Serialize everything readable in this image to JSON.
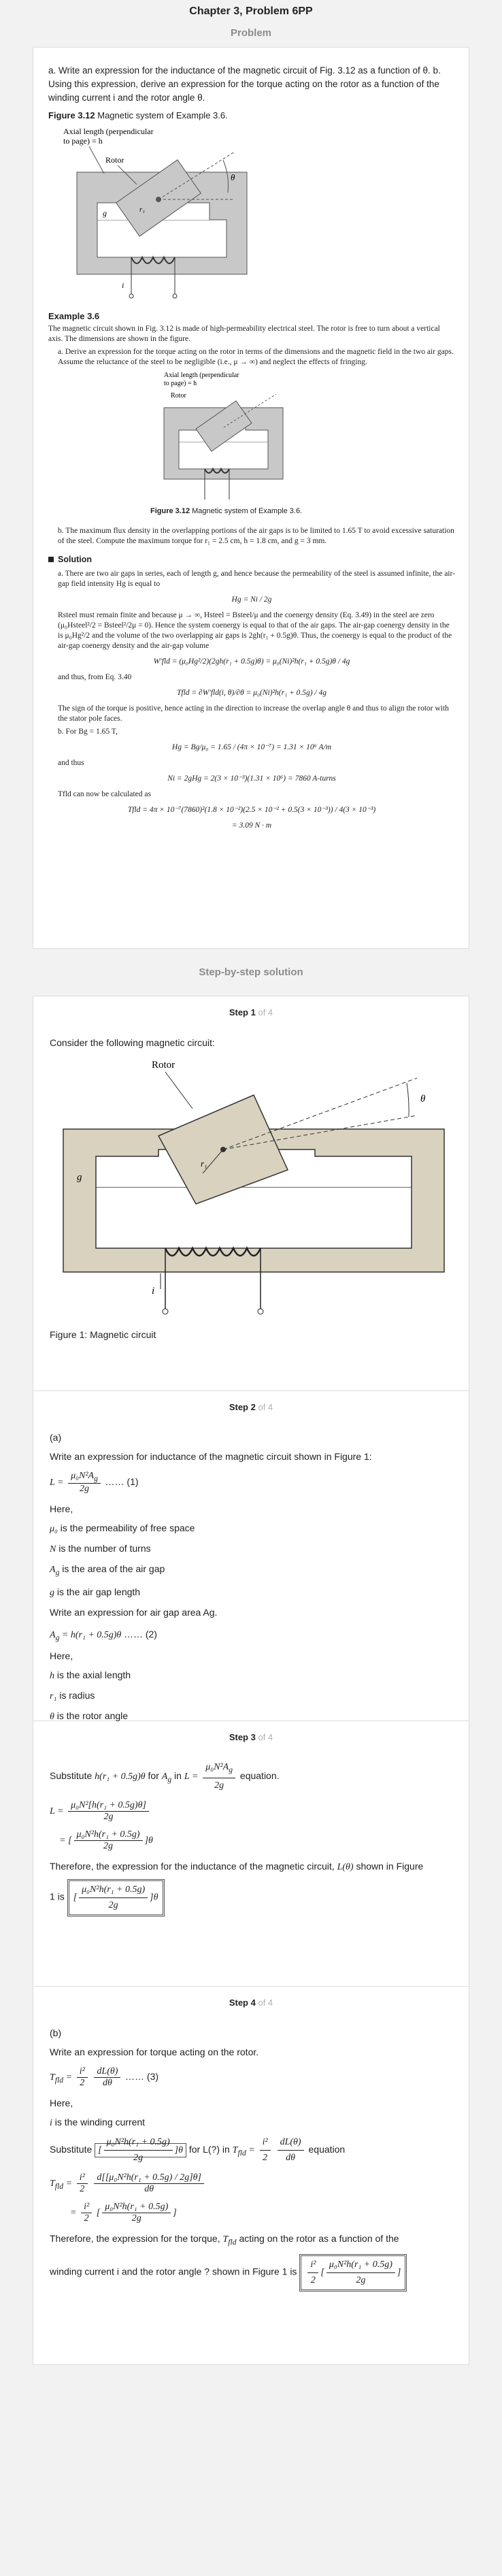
{
  "page_title": "Chapter 3, Problem 6PP",
  "problem_label": "Problem",
  "problem": {
    "text": "a. Write an expression for the inductance of the magnetic circuit of Fig. 3.12 as a function of θ. b. Using this expression, derive an expression for the torque acting on the rotor as a function of the winding current i and the rotor angle θ.",
    "figure_caption_bold": "Figure 3.12",
    "figure_caption": " Magnetic system of Example 3.6."
  },
  "figure_labels": {
    "axial": "Axial length (perpendicular",
    "axial2": "to page) = h",
    "rotor": "Rotor",
    "theta": "θ",
    "g": "g",
    "r1": "r₁",
    "i": "i"
  },
  "example": {
    "title": "Example 3.6",
    "intro": "The magnetic circuit shown in Fig. 3.12 is made of high-permeability electrical steel. The rotor is free to turn about a vertical axis. The dimensions are shown in the figure.",
    "part_a": "a.  Derive an expression for the torque acting on the rotor in terms of the dimensions and the magnetic field in the two air gaps. Assume the reluctance of the steel to be negligible (i.e., μ → ∞) and neglect the effects of fringing.",
    "fig_caption_bold": "Figure 3.12",
    "fig_caption": "  Magnetic system of Example 3.6.",
    "part_b": "b.  The maximum flux density in the overlapping portions of the air gaps is to be limited to 1.65 T to avoid excessive saturation of the steel. Compute the maximum torque for r₁ = 2.5 cm, h = 1.8 cm, and g = 3 mm.",
    "solution_label": "Solution",
    "sol_a1": "a.  There are two air gaps in series, each of length g, and hence because the permeability of the steel is assumed infinite, the air-gap field intensity Hg is equal to",
    "eq_hg": "Hg = Ni / 2g",
    "sol_a2": "Rsteel must remain finite and because μ → ∞, Hsteel = Bsteel/μ and the coenergy density (Eq. 3.49) in the steel are zero (μ₀Hsteel²/2 = Bsteel²/2μ = 0). Hence the system coenergy is equal to that of the air gaps. The air-gap coenergy density in the is μ₀Hg²/2 and the volume of the two overlapping air gaps is 2gh(r₁ + 0.5g)θ. Thus, the coenergy is equal to the product of the air-gap coenergy density and the air-gap volume",
    "eq_wfld": "W′fld = (μ₀Hg²/2)(2gh(r₁ + 0.5g)θ) = μ₀(Ni)²h(r₁ + 0.5g)θ / 4g",
    "sol_a3": "and thus, from Eq. 3.40",
    "eq_tfld": "Tfld = ∂W′fld(i, θ)/∂θ = μ₀(Ni)²h(r₁ + 0.5g) / 4g",
    "sol_a4": "The sign of the torque is positive, hence acting in the direction to increase the overlap angle θ and thus to align the rotor with the stator pole faces.",
    "sol_b1": "b.  For Bg = 1.65 T,",
    "eq_hg2": "Hg = Bg/μ₀ = 1.65 / (4π × 10⁻⁷) = 1.31 × 10⁶ A/m",
    "sol_b2": "and thus",
    "eq_ni": "Ni = 2gHg = 2(3 × 10⁻³)(1.31 × 10⁶) = 7860 A-turns",
    "sol_b3": "Tfld can now be calculated as",
    "eq_tfld2": "Tfld = 4π × 10⁻⁷(7860)²(1.8 × 10⁻²)(2.5 × 10⁻² + 0.5(3 × 10⁻³)) / 4(3 × 10⁻³)",
    "eq_result": "= 3.09 N · m"
  },
  "solution_label": "Step-by-step solution",
  "steps": {
    "s1": {
      "label": "Step 1",
      "of": "of 4",
      "intro": "Consider the following magnetic circuit:",
      "caption": "Figure 1: Magnetic circuit"
    },
    "s2": {
      "label": "Step 2",
      "of": "of 4",
      "part": "(a)",
      "intro": "Write an expression for inductance of the magnetic circuit shown in Figure 1:",
      "eq1_tag": "…… (1)",
      "here": "Here,",
      "d1": "is the permeability of free space",
      "d2": "is the number of turns",
      "d3": "is the area of the air gap",
      "d4": "is the air gap length",
      "intro2": "Write an expression for air gap area Ag.",
      "eq2_tag": "…… (2)",
      "here2": "Here,",
      "d5": "is the axial length",
      "d6": "is radius",
      "d7": "is the rotor angle"
    },
    "s3": {
      "label": "Step 3",
      "of": "of 4",
      "t1": "Substitute",
      "t2": "for",
      "t3": "in",
      "t4": "equation.",
      "concl1": "Therefore, the expression for the inductance of the magnetic circuit,",
      "concl2": "shown in Figure",
      "concl3": "1 is"
    },
    "s4": {
      "label": "Step 4",
      "of": "of 4",
      "part": "(b)",
      "intro": "Write an expression for torque acting on the rotor.",
      "eq3_tag": "…… (3)",
      "here": "Here,",
      "d1": "is the winding current",
      "t1": "Substitute",
      "t2": "for L(?) in",
      "t3": "equation",
      "concl1": "Therefore, the expression for the torque,",
      "concl2": "acting on the rotor as a function of the",
      "concl3": "winding current i and the rotor angle ? shown in Figure 1 is"
    }
  }
}
